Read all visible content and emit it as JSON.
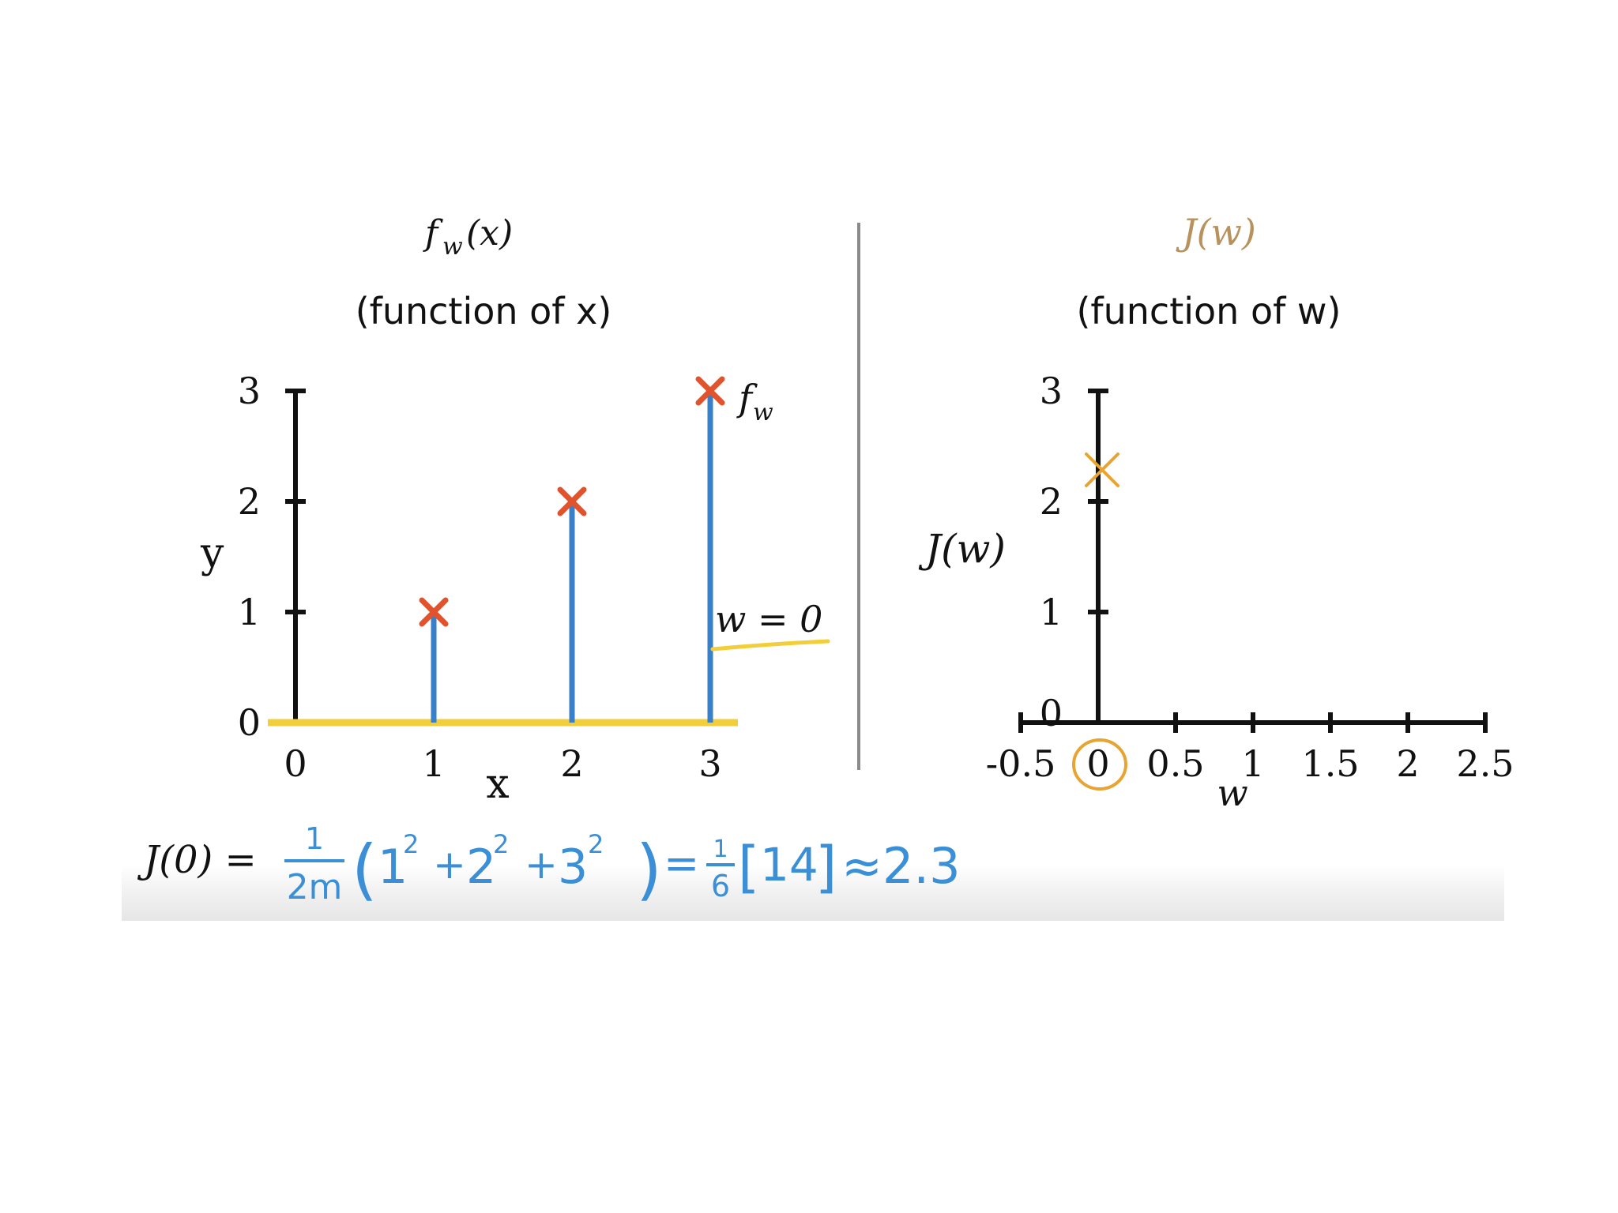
{
  "colors": {
    "axis": "#111111",
    "stem": "#3a80c9",
    "data_marker": "#e0532c",
    "highlight": "#f2cf3a",
    "cost_marker": "#e8a433",
    "cost_title": "#b7925c",
    "handwriting": "#3b8fd6",
    "divider": "#8a8a8a"
  },
  "chart_data": [
    {
      "type": "scatter",
      "title": "f_w(x)",
      "subtitle": "(function of x)",
      "xlabel": "x",
      "ylabel": "y",
      "xlim": [
        0,
        3
      ],
      "ylim": [
        0,
        3
      ],
      "x_ticks": [
        0,
        1,
        2,
        3
      ],
      "y_ticks": [
        0,
        1,
        2,
        3
      ],
      "x_tick_labels": [
        "0",
        "1",
        "2",
        "3"
      ],
      "y_tick_labels": [
        "0",
        "1",
        "2",
        "3"
      ],
      "series": [
        {
          "name": "training data",
          "marker": "x",
          "x": [
            1,
            2,
            3
          ],
          "y": [
            1,
            2,
            3
          ]
        }
      ],
      "model_line": {
        "w": 0,
        "x": [
          0,
          3.2
        ],
        "y": [
          0,
          0
        ]
      },
      "error_stems": [
        {
          "x": 1,
          "from": 0,
          "to": 1
        },
        {
          "x": 2,
          "from": 0,
          "to": 2
        },
        {
          "x": 3,
          "from": 0,
          "to": 3
        }
      ],
      "annotations": {
        "line_label": "f",
        "line_label_sub": "w",
        "param_label": "w = 0"
      }
    },
    {
      "type": "scatter",
      "title": "J(w)",
      "subtitle": "(function of w)",
      "xlabel": "w",
      "ylabel": "J(w)",
      "xlim": [
        -0.5,
        2.5
      ],
      "ylim": [
        0,
        3
      ],
      "x_ticks": [
        -0.5,
        0,
        0.5,
        1,
        1.5,
        2,
        2.5
      ],
      "y_ticks": [
        0,
        1,
        2,
        3
      ],
      "x_tick_labels": [
        "-0.5",
        "0",
        "0.5",
        "1",
        "1.5",
        "2",
        "2.5"
      ],
      "y_tick_labels": [
        "0",
        "1",
        "2",
        "3"
      ],
      "points": [
        {
          "w": 0,
          "J": 2.3
        }
      ],
      "circled_tick": 0
    }
  ],
  "equation": {
    "lhs": "J(0) =",
    "frac1_num": "1",
    "frac1_den": "2m",
    "terms": [
      "1",
      "2",
      "2",
      "2",
      "3",
      "2"
    ],
    "frac2_num": "1",
    "frac2_den": "6",
    "bracket_value": "14",
    "approx_result": "≈2.3"
  }
}
